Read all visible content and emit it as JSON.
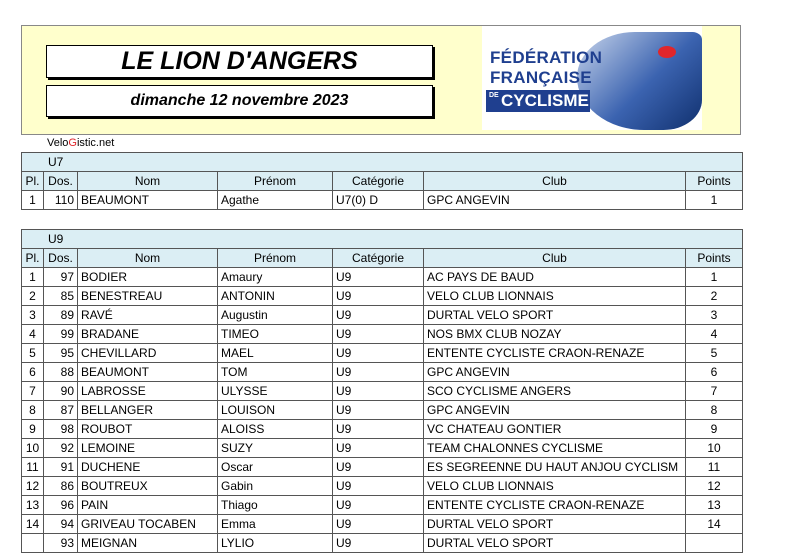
{
  "header": {
    "title": "LE LION D'ANGERS",
    "date": "dimanche 12 novembre 2023",
    "logo_line1": "FÉDÉRATION",
    "logo_line2": "FRANÇAISE",
    "logo_de": "DE",
    "logo_line3": "CYCLISME"
  },
  "brand": {
    "part1": "Velo",
    "part2": "G",
    "part3": "istic.net"
  },
  "columns": {
    "pl": "Pl.",
    "dos": "Dos.",
    "nom": "Nom",
    "prenom": "Prénom",
    "categorie": "Catégorie",
    "club": "Club",
    "points": "Points"
  },
  "sections": [
    {
      "name": "U7",
      "rows": [
        {
          "pl": "1",
          "dos": "110",
          "nom": "BEAUMONT",
          "prenom": "Agathe",
          "cat": "U7(0) D",
          "club": "GPC ANGEVIN",
          "points": "1"
        }
      ]
    },
    {
      "name": "U9",
      "rows": [
        {
          "pl": "1",
          "dos": "97",
          "nom": "BODIER",
          "prenom": "Amaury",
          "cat": "U9",
          "club": "AC PAYS DE BAUD",
          "points": "1"
        },
        {
          "pl": "2",
          "dos": "85",
          "nom": "BENESTREAU",
          "prenom": "ANTONIN",
          "cat": "U9",
          "club": "VELO CLUB LIONNAIS",
          "points": "2"
        },
        {
          "pl": "3",
          "dos": "89",
          "nom": "RAVÉ",
          "prenom": "Augustin",
          "cat": "U9",
          "club": "DURTAL VELO SPORT",
          "points": "3"
        },
        {
          "pl": "4",
          "dos": "99",
          "nom": "BRADANE",
          "prenom": "TIMEO",
          "cat": "U9",
          "club": "NOS BMX CLUB NOZAY",
          "points": "4"
        },
        {
          "pl": "5",
          "dos": "95",
          "nom": "CHEVILLARD",
          "prenom": "MAEL",
          "cat": "U9",
          "club": "ENTENTE CYCLISTE CRAON-RENAZE",
          "points": "5"
        },
        {
          "pl": "6",
          "dos": "88",
          "nom": "BEAUMONT",
          "prenom": "TOM",
          "cat": "U9",
          "club": "GPC ANGEVIN",
          "points": "6"
        },
        {
          "pl": "7",
          "dos": "90",
          "nom": "LABROSSE",
          "prenom": "ULYSSE",
          "cat": "U9",
          "club": "SCO CYCLISME ANGERS",
          "points": "7"
        },
        {
          "pl": "8",
          "dos": "87",
          "nom": "BELLANGER",
          "prenom": "LOUISON",
          "cat": "U9",
          "club": "GPC ANGEVIN",
          "points": "8"
        },
        {
          "pl": "9",
          "dos": "98",
          "nom": "ROUBOT",
          "prenom": "ALOISS",
          "cat": "U9",
          "club": "VC CHATEAU GONTIER",
          "points": "9"
        },
        {
          "pl": "10",
          "dos": "92",
          "nom": "LEMOINE",
          "prenom": "SUZY",
          "cat": "U9",
          "club": "TEAM CHALONNES CYCLISME",
          "points": "10"
        },
        {
          "pl": "11",
          "dos": "91",
          "nom": "DUCHENE",
          "prenom": "Oscar",
          "cat": "U9",
          "club": "ES SEGREENNE DU HAUT ANJOU CYCLISM",
          "points": "11"
        },
        {
          "pl": "12",
          "dos": "86",
          "nom": "BOUTREUX",
          "prenom": "Gabin",
          "cat": "U9",
          "club": "VELO CLUB LIONNAIS",
          "points": "12"
        },
        {
          "pl": "13",
          "dos": "96",
          "nom": "PAIN",
          "prenom": "Thiago",
          "cat": "U9",
          "club": "ENTENTE CYCLISTE CRAON-RENAZE",
          "points": "13"
        },
        {
          "pl": "14",
          "dos": "94",
          "nom": "GRIVEAU TOCABEN",
          "prenom": "Emma",
          "cat": "U9",
          "club": "DURTAL VELO SPORT",
          "points": "14"
        },
        {
          "pl": "",
          "dos": "93",
          "nom": "MEIGNAN",
          "prenom": "LYLIO",
          "cat": "U9",
          "club": "DURTAL VELO SPORT",
          "points": ""
        }
      ]
    }
  ]
}
